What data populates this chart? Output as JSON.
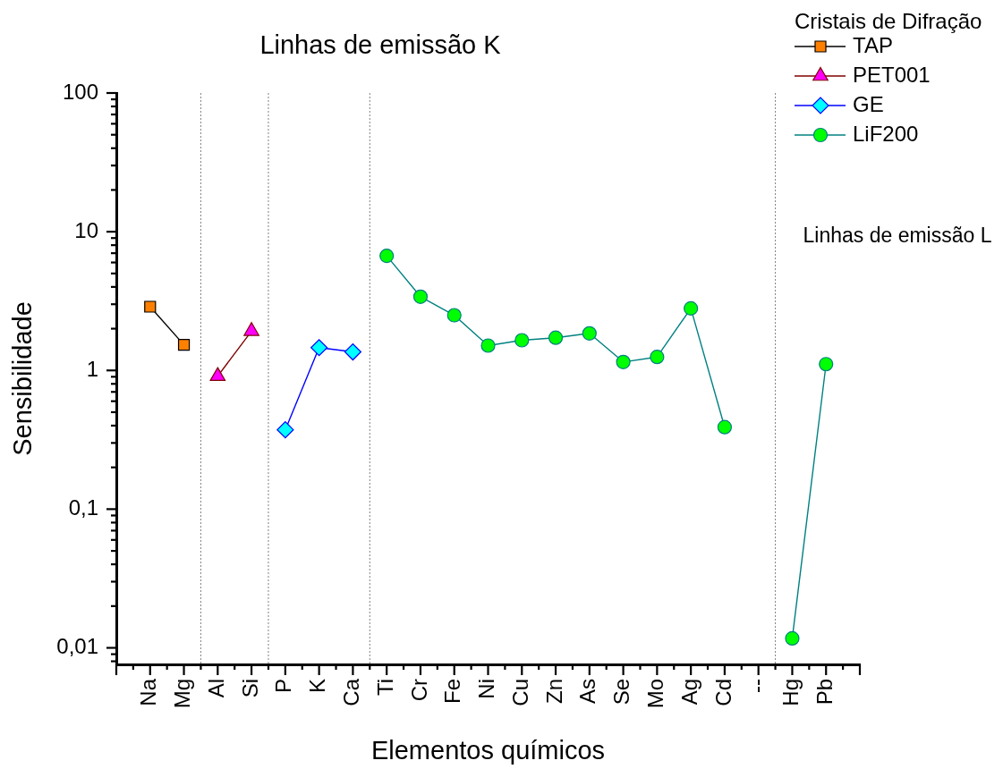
{
  "chart_data": {
    "type": "line",
    "title": "Linhas de emissão K",
    "xlabel": "Elementos químicos",
    "ylabel": "Sensibilidade",
    "legend_title": "Cristais de Difração",
    "legend": "top right",
    "log": true,
    "line_style": "solid",
    "categories": [
      "Na",
      "Mg",
      "Al",
      "Si",
      "P",
      "K",
      "Ca",
      "Ti",
      "Cr",
      "Fe",
      "Ni",
      "Cu",
      "Zn",
      "As",
      "Se",
      "Mo",
      "Ag",
      "Cd",
      "--",
      "Hg",
      "Pb"
    ],
    "ylim": [
      0.0076,
      100
    ],
    "yticks": [
      {
        "value": 0.008,
        "label": null
      },
      {
        "value": 0.009,
        "label": null
      },
      {
        "value": 0.01,
        "label": "0,01"
      },
      {
        "value": 0.02,
        "label": null
      },
      {
        "value": 0.03,
        "label": null
      },
      {
        "value": 0.04,
        "label": null
      },
      {
        "value": 0.05,
        "label": null
      },
      {
        "value": 0.06,
        "label": null
      },
      {
        "value": 0.07,
        "label": null
      },
      {
        "value": 0.08,
        "label": null
      },
      {
        "value": 0.09,
        "label": null
      },
      {
        "value": 0.1,
        "label": "0,1"
      },
      {
        "value": 0.2,
        "label": null
      },
      {
        "value": 0.3,
        "label": null
      },
      {
        "value": 0.4,
        "label": null
      },
      {
        "value": 0.5,
        "label": null
      },
      {
        "value": 0.6,
        "label": null
      },
      {
        "value": 0.7,
        "label": null
      },
      {
        "value": 0.8,
        "label": null
      },
      {
        "value": 0.9,
        "label": null
      },
      1,
      {
        "value": 2,
        "label": null
      },
      {
        "value": 3,
        "label": null
      },
      {
        "value": 4,
        "label": null
      },
      {
        "value": 5,
        "label": null
      },
      {
        "value": 6,
        "label": null
      },
      {
        "value": 7,
        "label": null
      },
      {
        "value": 8,
        "label": null
      },
      {
        "value": 9,
        "label": null
      },
      10,
      {
        "value": 20,
        "label": null
      },
      {
        "value": 30,
        "label": null
      },
      {
        "value": 40,
        "label": null
      },
      {
        "value": 50,
        "label": null
      },
      {
        "value": 60,
        "label": null
      },
      {
        "value": 70,
        "label": null
      },
      {
        "value": 80,
        "label": null
      },
      {
        "value": 90,
        "label": null
      },
      100
    ],
    "series": [
      {
        "name": "TAP",
        "color": "#000000",
        "marker": "square",
        "values": [
          2.88,
          1.53,
          null,
          null,
          null,
          null,
          null,
          null,
          null,
          null,
          null,
          null,
          null,
          null,
          null,
          null,
          null,
          null,
          null,
          null,
          null
        ],
        "colors": [
          "#ff8000",
          "#ff8000",
          null,
          null,
          null,
          null,
          null,
          null,
          null,
          null,
          null,
          null,
          null,
          null,
          null,
          null,
          null,
          null,
          null,
          null,
          null
        ]
      },
      {
        "name": "PET001",
        "color": "#800000",
        "marker": "triangle",
        "values": [
          null,
          null,
          0.91,
          1.92,
          null,
          null,
          null,
          null,
          null,
          null,
          null,
          null,
          null,
          null,
          null,
          null,
          null,
          null,
          null,
          null,
          null
        ],
        "colors": [
          null,
          null,
          "#ff00ff",
          "#ff00ff",
          null,
          null,
          null,
          null,
          null,
          null,
          null,
          null,
          null,
          null,
          null,
          null,
          null,
          null,
          null,
          null,
          null
        ]
      },
      {
        "name": "GE",
        "color": "#0000ff",
        "marker": "diamond",
        "values": [
          null,
          null,
          null,
          null,
          0.373,
          1.46,
          1.36,
          null,
          null,
          null,
          null,
          null,
          null,
          null,
          null,
          null,
          null,
          null,
          null,
          null,
          null
        ],
        "colors": [
          null,
          null,
          null,
          null,
          "#00ffff",
          "#00ffff",
          "#00ffff",
          null,
          null,
          null,
          null,
          null,
          null,
          null,
          null,
          null,
          null,
          null,
          null,
          null,
          null
        ]
      },
      {
        "name": "LiF200",
        "color": "#008080",
        "marker": "circle",
        "values": [
          null,
          null,
          null,
          null,
          null,
          null,
          null,
          6.7,
          3.4,
          2.5,
          1.51,
          1.65,
          1.72,
          1.85,
          1.15,
          1.25,
          2.8,
          0.39,
          null,
          0.0117,
          1.11
        ],
        "colors": [
          null,
          null,
          null,
          null,
          null,
          null,
          null,
          "#00ff00",
          "#00ff00",
          "#00ff00",
          "#00ff00",
          "#00ff00",
          "#00ff00",
          "#00ff00",
          "#00ff00",
          "#00ff00",
          "#00ff00",
          "#00ff00",
          null,
          "#00ff00",
          "#00ff00"
        ]
      }
    ],
    "annotations": [
      "Linhas de emissão L"
    ]
  }
}
